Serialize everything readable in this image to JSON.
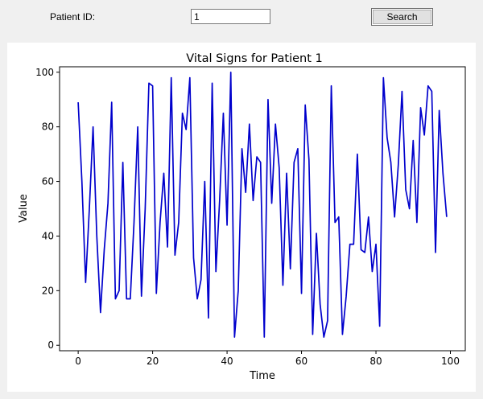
{
  "search_form": {
    "patient_id_label": "Patient ID:",
    "patient_id_value": "1",
    "search_label": "Search"
  },
  "colors": {
    "line": "#0000cc",
    "panel_background": "#ffffff",
    "window_background": "#f0f0f0"
  },
  "chart_data": {
    "type": "line",
    "title": "Vital Signs for Patient 1",
    "xlabel": "Time",
    "ylabel": "Value",
    "xlim": [
      -5,
      104
    ],
    "ylim": [
      -2,
      102
    ],
    "xticks": [
      0,
      20,
      40,
      60,
      80,
      100
    ],
    "yticks": [
      0,
      20,
      40,
      60,
      80,
      100
    ],
    "grid": false,
    "x": [
      0,
      1,
      2,
      3,
      4,
      5,
      6,
      7,
      8,
      9,
      10,
      11,
      12,
      13,
      14,
      15,
      16,
      17,
      18,
      19,
      20,
      21,
      22,
      23,
      24,
      25,
      26,
      27,
      28,
      29,
      30,
      31,
      32,
      33,
      34,
      35,
      36,
      37,
      38,
      39,
      40,
      41,
      42,
      43,
      44,
      45,
      46,
      47,
      48,
      49,
      50,
      51,
      52,
      53,
      54,
      55,
      56,
      57,
      58,
      59,
      60,
      61,
      62,
      63,
      64,
      65,
      66,
      67,
      68,
      69,
      70,
      71,
      72,
      73,
      74,
      75,
      76,
      77,
      78,
      79,
      80,
      81,
      82,
      83,
      84,
      85,
      86,
      87,
      88,
      89,
      90,
      91,
      92,
      93,
      94,
      95,
      96,
      97,
      98,
      99
    ],
    "series": [
      {
        "values": [
          89,
          60,
          23,
          50,
          80,
          40,
          12,
          35,
          52,
          89,
          17,
          20,
          67,
          17,
          17,
          45,
          80,
          18,
          50,
          96,
          95,
          19,
          45,
          63,
          36,
          98,
          33,
          45,
          85,
          79,
          98,
          32,
          17,
          24,
          60,
          10,
          96,
          27,
          53,
          85,
          44,
          100,
          3,
          20,
          72,
          56,
          81,
          53,
          69,
          67,
          3,
          90,
          52,
          81,
          65,
          22,
          63,
          28,
          67,
          72,
          19,
          88,
          68,
          4,
          41,
          15,
          3,
          9,
          95,
          45,
          47,
          4,
          18,
          37,
          37,
          70,
          35,
          34,
          47,
          27,
          37,
          7,
          98,
          76,
          67,
          47,
          66,
          93,
          57,
          50,
          75,
          45,
          87,
          77,
          95,
          93,
          34,
          86,
          63,
          47
        ]
      }
    ]
  }
}
